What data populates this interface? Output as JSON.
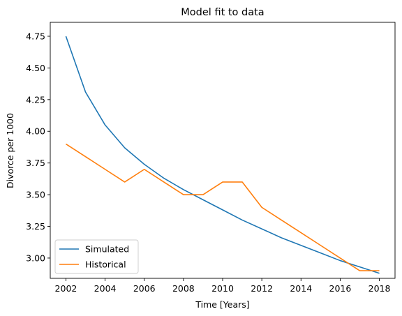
{
  "chart_data": {
    "type": "line",
    "title": "Model fit to data",
    "xlabel": "Time [Years]",
    "ylabel": "Divorce per 1000",
    "xlim": [
      2001.2,
      2018.8
    ],
    "ylim": [
      2.84,
      4.86
    ],
    "xticks": [
      2002,
      2004,
      2006,
      2008,
      2010,
      2012,
      2014,
      2016,
      2018
    ],
    "yticks": [
      3.0,
      3.25,
      3.5,
      3.75,
      4.0,
      4.25,
      4.5,
      4.75
    ],
    "grid": false,
    "legend_position": "lower-left",
    "series": [
      {
        "name": "Simulated",
        "color": "#1f77b4",
        "x": [
          2002,
          2003,
          2004,
          2005,
          2006,
          2007,
          2008,
          2009,
          2010,
          2011,
          2012,
          2013,
          2014,
          2015,
          2016,
          2017,
          2018
        ],
        "y": [
          4.75,
          4.31,
          4.05,
          3.87,
          3.74,
          3.63,
          3.54,
          3.46,
          3.38,
          3.3,
          3.23,
          3.16,
          3.1,
          3.04,
          2.98,
          2.93,
          2.88
        ]
      },
      {
        "name": "Historical",
        "color": "#ff7f0e",
        "x": [
          2002,
          2003,
          2004,
          2005,
          2006,
          2007,
          2008,
          2009,
          2010,
          2011,
          2012,
          2013,
          2014,
          2015,
          2016,
          2017,
          2018
        ],
        "y": [
          3.9,
          3.8,
          3.7,
          3.6,
          3.7,
          3.6,
          3.5,
          3.5,
          3.6,
          3.6,
          3.4,
          3.3,
          3.2,
          3.1,
          3.0,
          2.9,
          2.9
        ]
      }
    ]
  }
}
